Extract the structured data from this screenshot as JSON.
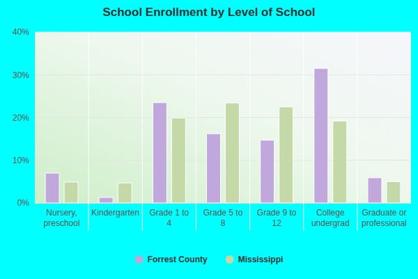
{
  "chart_data": {
    "type": "bar",
    "title": "School Enrollment by Level of School",
    "categories": [
      "Nursery, preschool",
      "Kindergarten",
      "Grade 1 to 4",
      "Grade 5 to 8",
      "Grade 9 to 12",
      "College undergrad",
      "Graduate or professional"
    ],
    "series": [
      {
        "name": "Forrest County",
        "color": "#c0a8dc",
        "values": [
          7.0,
          1.3,
          23.5,
          16.2,
          14.7,
          31.5,
          5.9
        ]
      },
      {
        "name": "Mississippi",
        "color": "#c5d9a8",
        "values": [
          4.9,
          4.7,
          19.9,
          23.4,
          22.5,
          19.2,
          5.0
        ]
      }
    ],
    "ylim": [
      0,
      40
    ],
    "yticks": [
      {
        "value": 0,
        "label": "0%"
      },
      {
        "value": 10,
        "label": "10%"
      },
      {
        "value": 20,
        "label": "20%"
      },
      {
        "value": 30,
        "label": "30%"
      },
      {
        "value": 40,
        "label": "40%"
      }
    ],
    "grid": true,
    "legend": "bottom"
  }
}
